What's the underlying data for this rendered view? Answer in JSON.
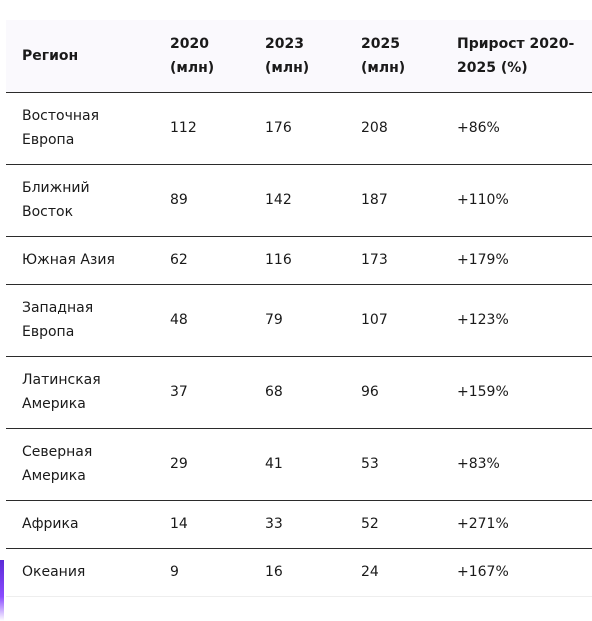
{
  "table": {
    "headers": {
      "region": "Регион",
      "y2020_a": "2020",
      "y2020_b": "(млн)",
      "y2023_a": "2023",
      "y2023_b": "(млн)",
      "y2025_a": "2025",
      "y2025_b": "(млн)",
      "growth_a": "Прирост 2020-",
      "growth_b": "2025 (%)"
    },
    "rows": [
      {
        "region_a": "Восточная",
        "region_b": "Европа",
        "y2020": "112",
        "y2023": "176",
        "y2025": "208",
        "growth": "+86%"
      },
      {
        "region_a": "Ближний",
        "region_b": "Восток",
        "y2020": "89",
        "y2023": "142",
        "y2025": "187",
        "growth": "+110%"
      },
      {
        "region_a": "Южная Азия",
        "region_b": "",
        "y2020": "62",
        "y2023": "116",
        "y2025": "173",
        "growth": "+179%"
      },
      {
        "region_a": "Западная",
        "region_b": "Европа",
        "y2020": "48",
        "y2023": "79",
        "y2025": "107",
        "growth": "+123%"
      },
      {
        "region_a": "Латинская",
        "region_b": "Америка",
        "y2020": "37",
        "y2023": "68",
        "y2025": "96",
        "growth": "+159%"
      },
      {
        "region_a": "Северная",
        "region_b": "Америка",
        "y2020": "29",
        "y2023": "41",
        "y2025": "53",
        "growth": "+83%"
      },
      {
        "region_a": "Африка",
        "region_b": "",
        "y2020": "14",
        "y2023": "33",
        "y2025": "52",
        "growth": "+271%"
      },
      {
        "region_a": "Океания",
        "region_b": "",
        "y2020": "9",
        "y2023": "16",
        "y2025": "24",
        "growth": "+167%"
      }
    ]
  },
  "colors": {
    "header_bg": "#faf9fd",
    "row_border": "#2b2b2b",
    "accent": "#6a35e6"
  }
}
